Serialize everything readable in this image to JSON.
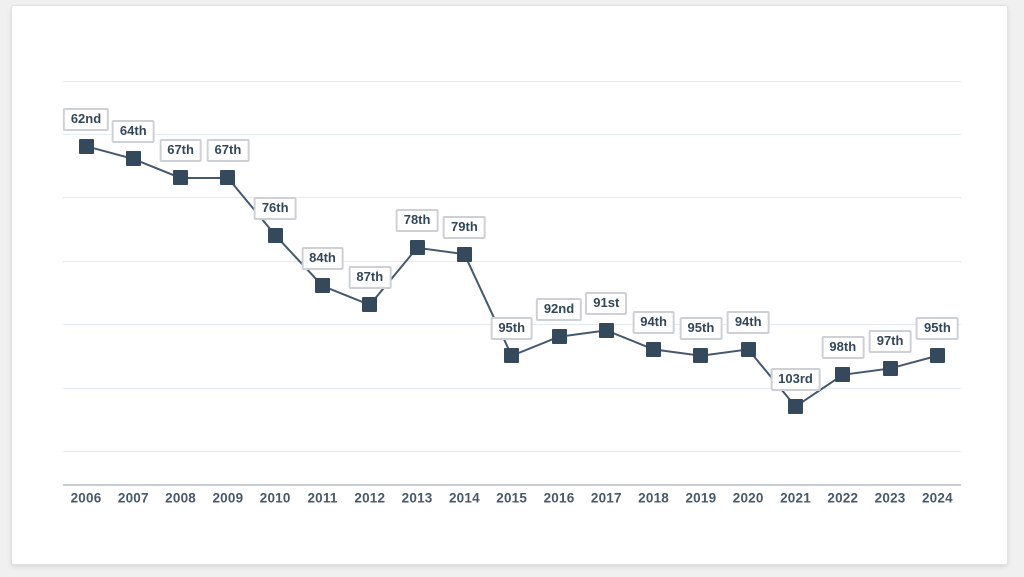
{
  "chart_data": {
    "type": "line",
    "title": "",
    "xlabel": "",
    "ylabel": "",
    "x": [
      2006,
      2007,
      2008,
      2009,
      2010,
      2011,
      2012,
      2013,
      2014,
      2015,
      2016,
      2017,
      2018,
      2019,
      2020,
      2021,
      2022,
      2023,
      2024
    ],
    "values": [
      62,
      64,
      67,
      67,
      76,
      84,
      87,
      78,
      79,
      95,
      92,
      91,
      94,
      95,
      94,
      103,
      98,
      97,
      95
    ],
    "points": [
      {
        "year": "2006",
        "rank": 62,
        "label": "62nd"
      },
      {
        "year": "2007",
        "rank": 64,
        "label": "64th"
      },
      {
        "year": "2008",
        "rank": 67,
        "label": "67th"
      },
      {
        "year": "2009",
        "rank": 67,
        "label": "67th"
      },
      {
        "year": "2010",
        "rank": 76,
        "label": "76th"
      },
      {
        "year": "2011",
        "rank": 84,
        "label": "84th"
      },
      {
        "year": "2012",
        "rank": 87,
        "label": "87th"
      },
      {
        "year": "2013",
        "rank": 78,
        "label": "78th"
      },
      {
        "year": "2014",
        "rank": 79,
        "label": "79th"
      },
      {
        "year": "2015",
        "rank": 95,
        "label": "95th"
      },
      {
        "year": "2016",
        "rank": 92,
        "label": "92nd"
      },
      {
        "year": "2017",
        "rank": 91,
        "label": "91st"
      },
      {
        "year": "2018",
        "rank": 94,
        "label": "94th"
      },
      {
        "year": "2019",
        "rank": 95,
        "label": "95th"
      },
      {
        "year": "2020",
        "rank": 94,
        "label": "94th"
      },
      {
        "year": "2021",
        "rank": 103,
        "label": "103rd"
      },
      {
        "year": "2022",
        "rank": 98,
        "label": "98th"
      },
      {
        "year": "2023",
        "rank": 97,
        "label": "97th"
      },
      {
        "year": "2024",
        "rank": 95,
        "label": "95th"
      }
    ],
    "y_inverted": true,
    "ylim": [
      52,
      115
    ],
    "gridline_ranks": [
      60,
      70,
      80,
      90,
      100,
      110
    ],
    "grid": true,
    "legend": false,
    "colors": {
      "marker": "#35495c",
      "line": "#44596e",
      "gridline": "#e4eaf1",
      "axis_line": "#c9cdd1",
      "label_text": "#33475b",
      "label_border": "#cdd1d5",
      "label_background": "#ffffff",
      "year_text": "#47596b",
      "card_background": "#ffffff",
      "page_background": "#f0f0f0"
    }
  }
}
